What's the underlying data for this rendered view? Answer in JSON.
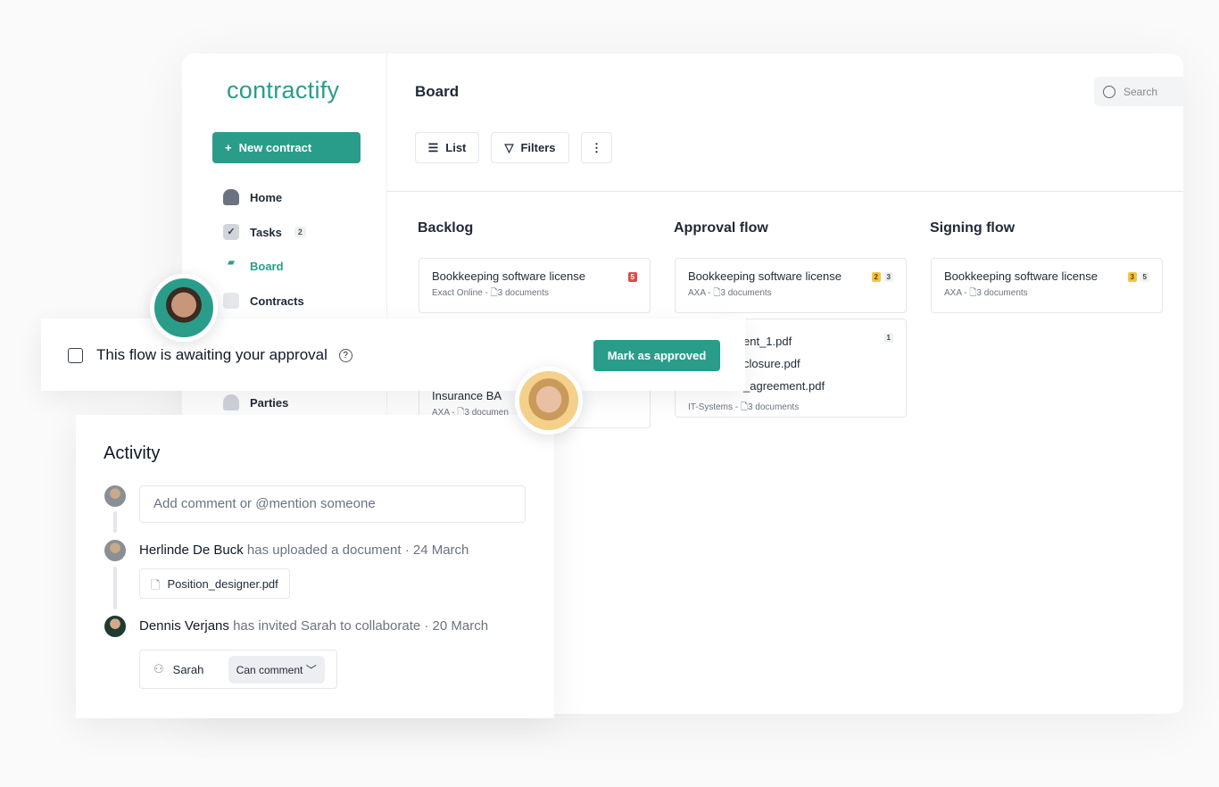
{
  "sidebar": {
    "logo": "contractify",
    "new_contract": "New contract",
    "items": [
      {
        "label": "Home",
        "icon": "home-icon"
      },
      {
        "label": "Tasks",
        "icon": "check-icon",
        "badge": "2"
      },
      {
        "label": "Board",
        "icon": "board-icon",
        "active": true
      },
      {
        "label": "Contracts",
        "icon": "document-icon"
      },
      {
        "label": "Parties",
        "icon": "people-icon"
      }
    ]
  },
  "header": {
    "title": "Board",
    "search_placeholder": "Search"
  },
  "toolbar": {
    "list": "List",
    "filters": "Filters"
  },
  "columns": [
    {
      "title": "Backlog",
      "cards": [
        {
          "title": "Bookkeeping software license",
          "party": "Exact Online",
          "docs": "3 documents",
          "badges": [
            {
              "text": "5",
              "color": "#e5484d"
            }
          ]
        },
        {
          "title": "Insurance BA",
          "party": "AXA",
          "docs": "3 documen"
        }
      ]
    },
    {
      "title": "Approval flow",
      "cards": [
        {
          "title": "Bookkeeping software license",
          "party": "AXA",
          "docs": "3 documents",
          "badges": [
            {
              "text": "2",
              "color": "#f5c542"
            },
            {
              "text": "3",
              "color": "#eef0f2"
            }
          ]
        },
        {
          "files": [
            "ent_1.pdf",
            "closure.pdf",
            "_agreement.pdf"
          ],
          "badge": "1",
          "party": "IT-Systems",
          "docs": "3 documents"
        }
      ]
    },
    {
      "title": "Signing flow",
      "cards": [
        {
          "title": "Bookkeeping software license",
          "party": "AXA",
          "docs": "3 documents",
          "badges": [
            {
              "text": "3",
              "color": "#f5c542"
            },
            {
              "text": "5",
              "color": "#eef0f2"
            }
          ]
        }
      ]
    }
  ],
  "approval": {
    "text": "This flow is awaiting your approval",
    "button": "Mark as approved"
  },
  "activity": {
    "title": "Activity",
    "comment_placeholder": "Add comment or @mention someone",
    "events": [
      {
        "name": "Herlinde De Buck",
        "action": "has uploaded a document · 24 March",
        "file": "Position_designer.pdf"
      },
      {
        "name": "Dennis Verjans",
        "action": "has invited Sarah to collaborate · 20 March",
        "invitee": "Sarah",
        "permission": "Can comment"
      }
    ]
  },
  "colors": {
    "accent": "#2a9d8a",
    "danger": "#e5484d",
    "warning": "#f5c542"
  }
}
